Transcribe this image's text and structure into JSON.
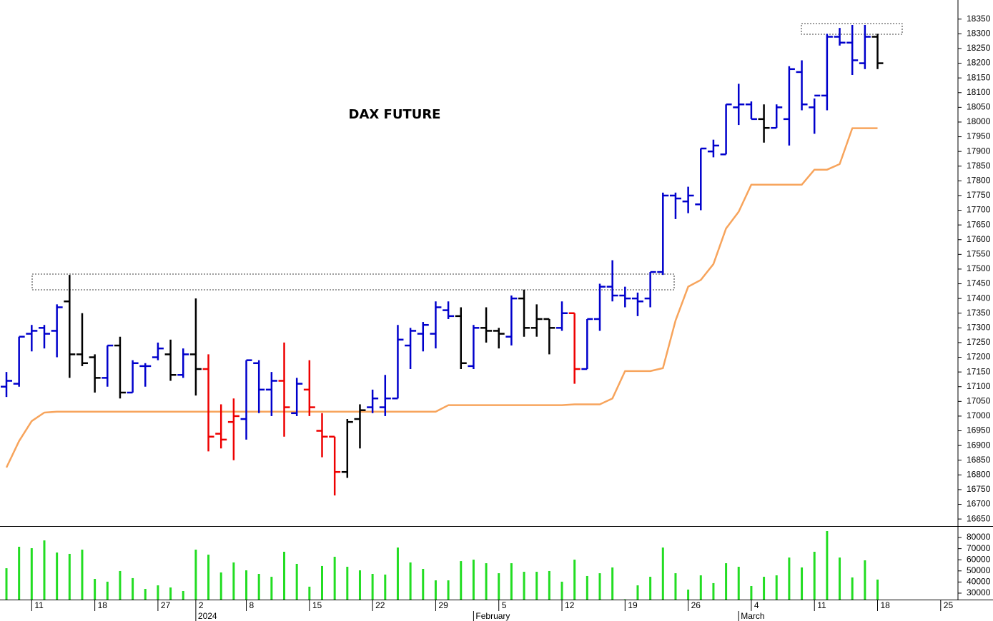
{
  "chart_data": [
    {
      "type": "ohlc",
      "title": "DAX FUTURE",
      "open": [
        17100,
        17110,
        17280,
        17300,
        17290,
        17390,
        17210,
        17200,
        17130,
        17240,
        17080,
        17170,
        17200,
        17210,
        17140,
        17210,
        17160,
        16940,
        16980,
        16990,
        17180,
        17090,
        17120,
        17010,
        17090,
        16950,
        16930,
        16810,
        16990,
        17030,
        17030,
        17060,
        17240,
        17280,
        17280,
        17360,
        17340,
        17170,
        17300,
        17290,
        17270,
        17400,
        17300,
        17330,
        17300,
        17350,
        17160,
        17330,
        17440,
        17410,
        17400,
        17400,
        17490,
        17750,
        17730,
        17720,
        17900,
        17890,
        18050,
        18060,
        18010,
        17980,
        18010,
        18170,
        18050,
        18090,
        18290,
        18270,
        18200,
        18290
      ],
      "high": [
        17150,
        17270,
        17310,
        17310,
        17380,
        17480,
        17350,
        17210,
        17240,
        17270,
        17190,
        17180,
        17250,
        17260,
        17230,
        17400,
        17210,
        17040,
        17060,
        17190,
        17190,
        17150,
        17250,
        17130,
        17190,
        17010,
        16930,
        16990,
        17040,
        17090,
        17140,
        17310,
        17300,
        17320,
        17390,
        17390,
        17370,
        17310,
        17370,
        17300,
        17410,
        17430,
        17380,
        17330,
        17390,
        17350,
        17330,
        17450,
        17530,
        17440,
        17420,
        17490,
        17760,
        17760,
        17780,
        17910,
        17940,
        18060,
        18130,
        18070,
        18060,
        18060,
        18190,
        18210,
        18080,
        18300,
        18320,
        18330,
        18330,
        18300
      ],
      "low": [
        17065,
        17100,
        17220,
        17230,
        17200,
        17130,
        17170,
        17080,
        17100,
        17060,
        17080,
        17100,
        17190,
        17120,
        17130,
        17070,
        16880,
        16890,
        16850,
        16920,
        17010,
        17000,
        16930,
        17000,
        17000,
        16860,
        16730,
        16790,
        16890,
        17010,
        17000,
        17060,
        17160,
        17220,
        17230,
        17330,
        17160,
        17160,
        17250,
        17230,
        17240,
        17270,
        17270,
        17210,
        17290,
        17110,
        17160,
        17290,
        17390,
        17370,
        17340,
        17370,
        17480,
        17670,
        17690,
        17700,
        17880,
        17890,
        17990,
        18010,
        17930,
        17980,
        17920,
        18040,
        17960,
        18040,
        18260,
        18160,
        18180,
        18180
      ],
      "close": [
        17120,
        17270,
        17290,
        17280,
        17370,
        17210,
        17180,
        17130,
        17240,
        17080,
        17180,
        17170,
        17230,
        17140,
        17210,
        17160,
        16930,
        16920,
        17000,
        17190,
        17090,
        17120,
        17030,
        17110,
        17030,
        16930,
        16810,
        16980,
        17020,
        17060,
        17060,
        17260,
        17290,
        17310,
        17370,
        17340,
        17180,
        17300,
        17290,
        17280,
        17400,
        17300,
        17330,
        17300,
        17350,
        17160,
        17330,
        17440,
        17410,
        17400,
        17390,
        17490,
        17750,
        17740,
        17750,
        17910,
        17920,
        18060,
        18060,
        18010,
        17980,
        18050,
        18180,
        18060,
        18090,
        18290,
        18270,
        18210,
        18290,
        18200
      ],
      "colors": [
        "#0000cc",
        "#0000cc",
        "#0000cc",
        "#0000cc",
        "#0000cc",
        "#000000",
        "#000000",
        "#000000",
        "#0000cc",
        "#000000",
        "#0000cc",
        "#0000cc",
        "#0000cc",
        "#000000",
        "#0000cc",
        "#000000",
        "#ee0000",
        "#ee0000",
        "#ee0000",
        "#0000cc",
        "#0000cc",
        "#0000cc",
        "#ee0000",
        "#0000cc",
        "#ee0000",
        "#ee0000",
        "#ee0000",
        "#000000",
        "#000000",
        "#0000cc",
        "#0000cc",
        "#0000cc",
        "#0000cc",
        "#0000cc",
        "#0000cc",
        "#0000cc",
        "#000000",
        "#0000cc",
        "#000000",
        "#000000",
        "#0000cc",
        "#000000",
        "#000000",
        "#000000",
        "#0000cc",
        "#ee0000",
        "#0000cc",
        "#0000cc",
        "#0000cc",
        "#0000cc",
        "#0000cc",
        "#0000cc",
        "#0000cc",
        "#0000cc",
        "#0000cc",
        "#0000cc",
        "#0000cc",
        "#0000cc",
        "#0000cc",
        "#0000cc",
        "#000000",
        "#0000cc",
        "#0000cc",
        "#0000cc",
        "#0000cc",
        "#0000cc",
        "#0000cc",
        "#0000cc",
        "#0000cc",
        "#000000"
      ],
      "line": {
        "color": "#f7a45c",
        "values": [
          16825,
          16915,
          16983,
          17012,
          17015,
          17015,
          17015,
          17015,
          17015,
          17015,
          17015,
          17015,
          17015,
          17015,
          17015,
          17015,
          17015,
          17015,
          17015,
          17015,
          17015,
          17015,
          17015,
          17015,
          17015,
          17015,
          17015,
          17015,
          17015,
          17015,
          17015,
          17015,
          17015,
          17015,
          17015,
          17037,
          17037,
          17037,
          17037,
          17037,
          17037,
          17037,
          17037,
          17037,
          17037,
          17040,
          17040,
          17040,
          17060,
          17153,
          17153,
          17153,
          17163,
          17325,
          17440,
          17463,
          17517,
          17638,
          17695,
          17787,
          17787,
          17787,
          17787,
          17787,
          17838,
          17838,
          17857,
          17979,
          17979,
          17979
        ]
      },
      "ylim": [
        16626,
        18415
      ],
      "yticks": [
        16650,
        16700,
        16750,
        16800,
        16850,
        16900,
        16950,
        17000,
        17050,
        17100,
        17150,
        17200,
        17250,
        17300,
        17350,
        17400,
        17450,
        17500,
        17550,
        17600,
        17650,
        17700,
        17750,
        17800,
        17850,
        17900,
        17950,
        18000,
        18050,
        18100,
        18150,
        18200,
        18250,
        18300,
        18350
      ],
      "xlim": [
        -0.51,
        75.37
      ],
      "xticks": [
        {
          "value": 2,
          "label": "11"
        },
        {
          "value": 7,
          "label": "18"
        },
        {
          "value": 12,
          "label": "27"
        },
        {
          "value": 15,
          "label": "2"
        },
        {
          "value": 19,
          "label": "8"
        },
        {
          "value": 24,
          "label": "15"
        },
        {
          "value": 29,
          "label": "22"
        },
        {
          "value": 34,
          "label": "29"
        },
        {
          "value": 39,
          "label": "5"
        },
        {
          "value": 44,
          "label": "12"
        },
        {
          "value": 49,
          "label": "19"
        },
        {
          "value": 54,
          "label": "26"
        },
        {
          "value": 59,
          "label": "4"
        },
        {
          "value": 64,
          "label": "11"
        },
        {
          "value": 69,
          "label": "18"
        },
        {
          "value": 74,
          "label": "25"
        }
      ],
      "month_labels": [
        {
          "value": 15,
          "label": "2024"
        },
        {
          "value": 37,
          "label": "February"
        },
        {
          "value": 58,
          "label": "March"
        }
      ]
    },
    {
      "type": "bar",
      "color": "#22dd22",
      "values": [
        52400,
        71700,
        70400,
        77400,
        66500,
        65300,
        69100,
        42800,
        40300,
        49900,
        43500,
        33800,
        37000,
        35100,
        31900,
        69100,
        64600,
        48600,
        57600,
        50500,
        47300,
        44700,
        67200,
        56300,
        35800,
        54400,
        62700,
        53700,
        50500,
        47300,
        46700,
        71000,
        57600,
        51800,
        41500,
        41500,
        58800,
        60100,
        56900,
        47900,
        56900,
        49200,
        49200,
        49900,
        40300,
        60100,
        45400,
        47900,
        53100,
        24500,
        37000,
        44700,
        71000,
        47900,
        33200,
        46000,
        39000,
        56900,
        53700,
        36400,
        44700,
        46000,
        62000,
        53100,
        67200,
        85800,
        62000,
        44100,
        59500,
        42200
      ],
      "ylim": [
        24200,
        90300
      ],
      "yticks": [
        30000,
        40000,
        50000,
        60000,
        70000,
        80000
      ]
    }
  ]
}
